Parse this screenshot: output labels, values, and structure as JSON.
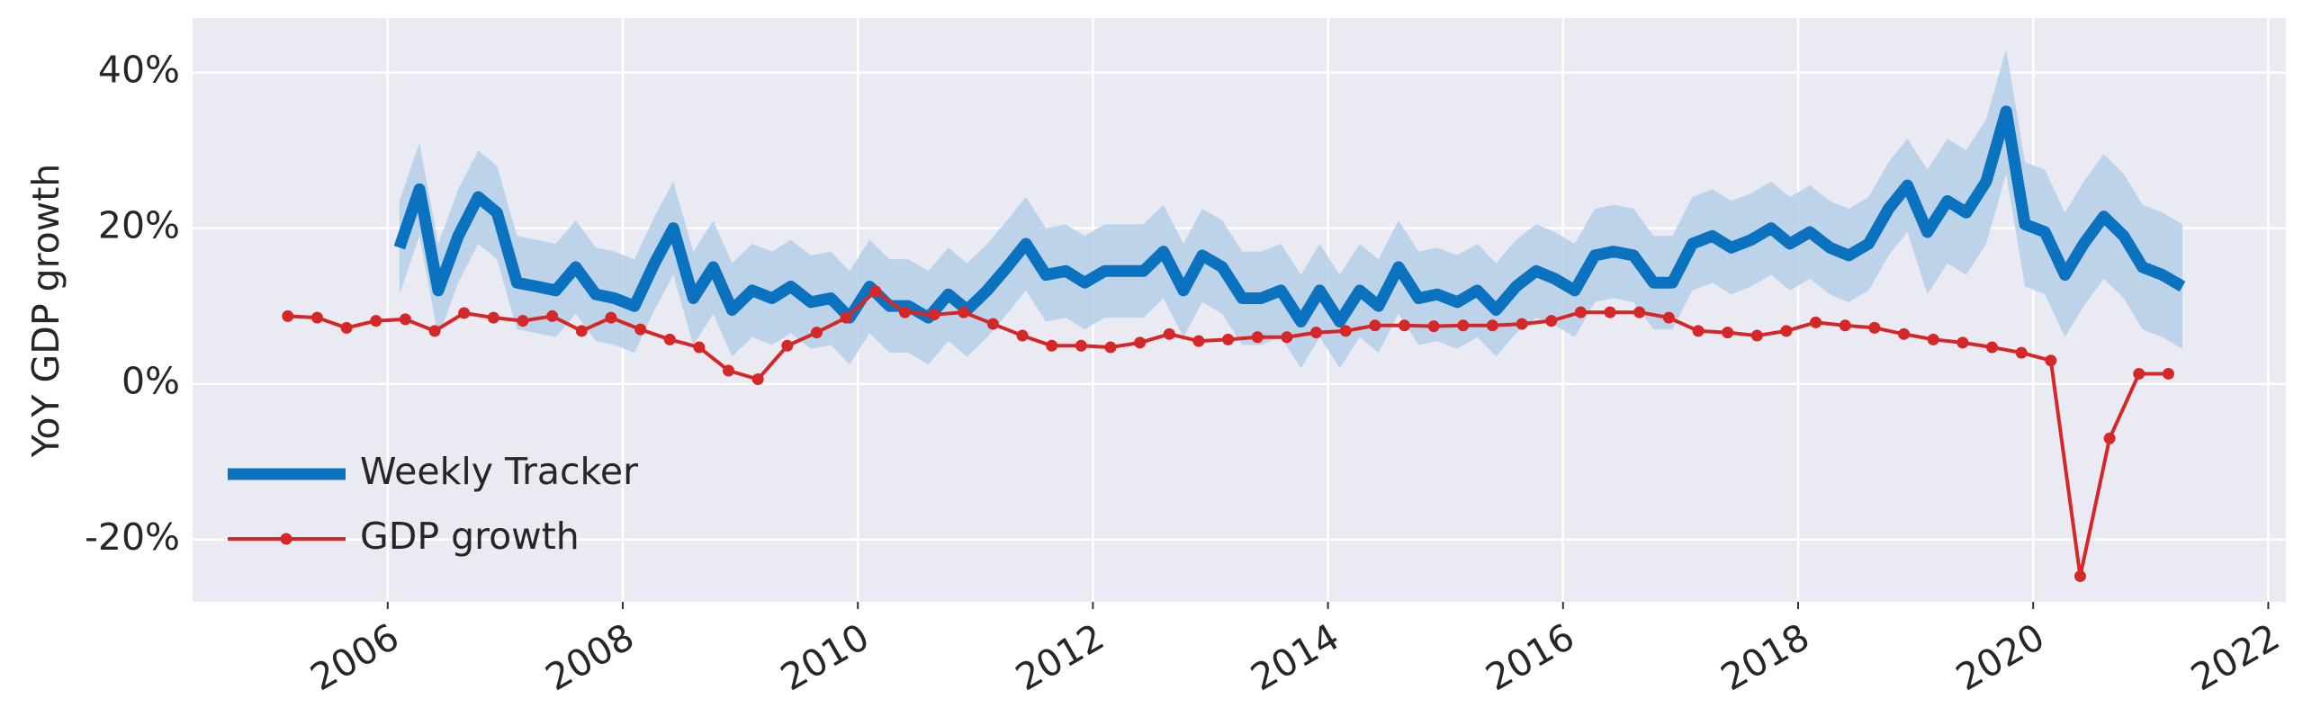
{
  "chart_data": {
    "type": "line",
    "ylabel": "YoY GDP growth",
    "xlim": [
      2004.34,
      2022.15
    ],
    "ylim": [
      -28,
      47
    ],
    "xticks": [
      2006,
      2008,
      2010,
      2012,
      2014,
      2016,
      2018,
      2020,
      2022
    ],
    "yticks": [
      {
        "value": 40,
        "label": "40%"
      },
      {
        "value": 20,
        "label": "20%"
      },
      {
        "value": 0,
        "label": "0%"
      },
      {
        "value": -20,
        "label": "-20%"
      }
    ],
    "grid": true,
    "legend": "lower left",
    "series": [
      {
        "name": "Weekly Tracker",
        "color": "#0a72be",
        "band_color": "#b5cfe9",
        "x": [
          2006.1,
          2006.27,
          2006.43,
          2006.6,
          2006.77,
          2006.93,
          2007.1,
          2007.27,
          2007.43,
          2007.6,
          2007.77,
          2007.93,
          2008.1,
          2008.27,
          2008.43,
          2008.6,
          2008.77,
          2008.93,
          2009.1,
          2009.27,
          2009.43,
          2009.6,
          2009.77,
          2009.93,
          2010.1,
          2010.27,
          2010.43,
          2010.6,
          2010.77,
          2010.93,
          2011.1,
          2011.27,
          2011.43,
          2011.6,
          2011.77,
          2011.93,
          2012.1,
          2012.27,
          2012.43,
          2012.6,
          2012.77,
          2012.93,
          2013.1,
          2013.27,
          2013.43,
          2013.6,
          2013.77,
          2013.93,
          2014.1,
          2014.27,
          2014.43,
          2014.6,
          2014.77,
          2014.93,
          2015.1,
          2015.27,
          2015.43,
          2015.6,
          2015.77,
          2015.93,
          2016.1,
          2016.27,
          2016.43,
          2016.6,
          2016.77,
          2016.93,
          2017.1,
          2017.27,
          2017.43,
          2017.6,
          2017.77,
          2017.93,
          2018.1,
          2018.27,
          2018.43,
          2018.6,
          2018.77,
          2018.93,
          2019.1,
          2019.27,
          2019.43,
          2019.6,
          2019.77,
          2019.93,
          2020.1,
          2020.27,
          2020.43,
          2020.6,
          2020.77,
          2020.93,
          2021.1,
          2021.27
        ],
        "values": [
          17.5,
          25,
          12,
          19,
          24,
          22,
          13,
          12.5,
          12,
          15,
          11.5,
          11,
          10,
          15.5,
          20,
          11,
          15,
          9.5,
          12,
          11,
          12.5,
          10.5,
          11,
          8.5,
          12.5,
          10,
          10,
          8.5,
          11.5,
          9.5,
          12,
          15,
          18,
          14,
          14.5,
          13,
          14.5,
          14.5,
          14.5,
          17,
          12,
          16.5,
          15,
          11,
          11,
          12,
          8,
          12,
          8,
          12,
          10,
          15,
          11,
          11.5,
          10.5,
          12,
          9.5,
          12.5,
          14.5,
          13.5,
          12,
          16.5,
          17,
          16.5,
          13,
          13,
          18,
          19,
          17.5,
          18.5,
          20,
          18,
          19.5,
          17.5,
          16.5,
          18,
          22.5,
          25.5,
          19.5,
          23.5,
          22,
          26,
          35,
          20.5,
          19.5,
          14,
          18,
          21.5,
          19,
          15,
          14,
          12.5
        ],
        "upper": [
          23.5,
          31,
          18,
          25,
          30,
          28,
          19,
          18.5,
          18,
          21,
          17.5,
          17,
          16,
          21.5,
          26,
          17,
          21,
          15.5,
          18,
          17,
          18.5,
          16.5,
          17,
          14.5,
          18.5,
          16,
          16,
          14.5,
          17.5,
          15.5,
          18,
          21,
          24,
          20,
          20.5,
          19,
          20.5,
          20.5,
          20.5,
          23,
          18,
          22.5,
          21,
          17,
          17,
          18,
          14,
          18,
          14,
          18,
          16,
          21,
          17,
          17.5,
          16.5,
          18,
          15.5,
          18.5,
          20.5,
          19.5,
          18,
          22.5,
          23,
          22.5,
          19,
          19,
          24,
          25,
          23.5,
          24.5,
          26,
          24,
          25.5,
          23.5,
          22.5,
          24,
          28.5,
          31.5,
          27.5,
          31.5,
          30,
          34,
          43,
          28.5,
          27.5,
          22,
          26,
          29.5,
          27,
          23,
          22,
          20.5
        ],
        "lower": [
          11.5,
          19,
          6,
          13,
          18,
          16,
          7,
          6.5,
          6,
          9,
          5.5,
          5,
          4,
          9.5,
          14,
          5,
          9,
          3.5,
          6,
          5,
          6.5,
          4.5,
          5,
          2.5,
          6.5,
          4,
          4,
          2.5,
          5.5,
          3.5,
          6,
          9,
          12,
          8,
          8.5,
          7,
          8.5,
          8.5,
          8.5,
          11,
          6,
          10.5,
          9,
          5,
          5,
          6,
          2,
          6,
          2,
          6,
          4,
          9,
          5,
          5.5,
          4.5,
          6,
          3.5,
          6.5,
          8.5,
          7.5,
          6,
          10.5,
          11,
          10.5,
          7,
          7,
          12,
          13,
          11.5,
          12.5,
          14,
          12,
          13.5,
          11.5,
          10.5,
          12,
          16.5,
          19.5,
          11.5,
          15.5,
          14,
          18,
          27,
          12.5,
          11.5,
          6,
          10,
          13.5,
          11,
          7,
          6,
          4.5
        ]
      },
      {
        "name": "GDP growth",
        "color": "#d62728",
        "marker": true,
        "x": [
          2005.15,
          2005.4,
          2005.65,
          2005.9,
          2006.15,
          2006.4,
          2006.65,
          2006.9,
          2007.15,
          2007.4,
          2007.65,
          2007.9,
          2008.15,
          2008.4,
          2008.65,
          2008.9,
          2009.15,
          2009.4,
          2009.65,
          2009.9,
          2010.15,
          2010.4,
          2010.65,
          2010.9,
          2011.15,
          2011.4,
          2011.65,
          2011.9,
          2012.15,
          2012.4,
          2012.65,
          2012.9,
          2013.15,
          2013.4,
          2013.65,
          2013.9,
          2014.15,
          2014.4,
          2014.65,
          2014.9,
          2015.15,
          2015.4,
          2015.65,
          2015.9,
          2016.15,
          2016.4,
          2016.65,
          2016.9,
          2017.15,
          2017.4,
          2017.65,
          2017.9,
          2018.15,
          2018.4,
          2018.65,
          2018.9,
          2019.15,
          2019.4,
          2019.65,
          2019.9,
          2020.15,
          2020.4,
          2020.65,
          2020.9,
          2021.15
        ],
        "values": [
          8.7,
          8.5,
          7.2,
          8.1,
          8.3,
          6.8,
          9.1,
          8.5,
          8.1,
          8.7,
          6.8,
          8.5,
          7,
          5.7,
          4.7,
          1.7,
          0.6,
          4.9,
          6.6,
          8.5,
          11.9,
          9.2,
          8.9,
          9.2,
          7.7,
          6.2,
          4.9,
          4.9,
          4.7,
          5.3,
          6.4,
          5.5,
          5.7,
          6,
          6,
          6.6,
          6.8,
          7.5,
          7.5,
          7.4,
          7.5,
          7.5,
          7.7,
          8.1,
          9.2,
          9.2,
          9.2,
          8.5,
          6.8,
          6.6,
          6.2,
          6.8,
          7.9,
          7.5,
          7.2,
          6.4,
          5.7,
          5.3,
          4.7,
          4,
          3,
          -24.7,
          -7,
          1.3,
          1.3
        ]
      }
    ]
  }
}
